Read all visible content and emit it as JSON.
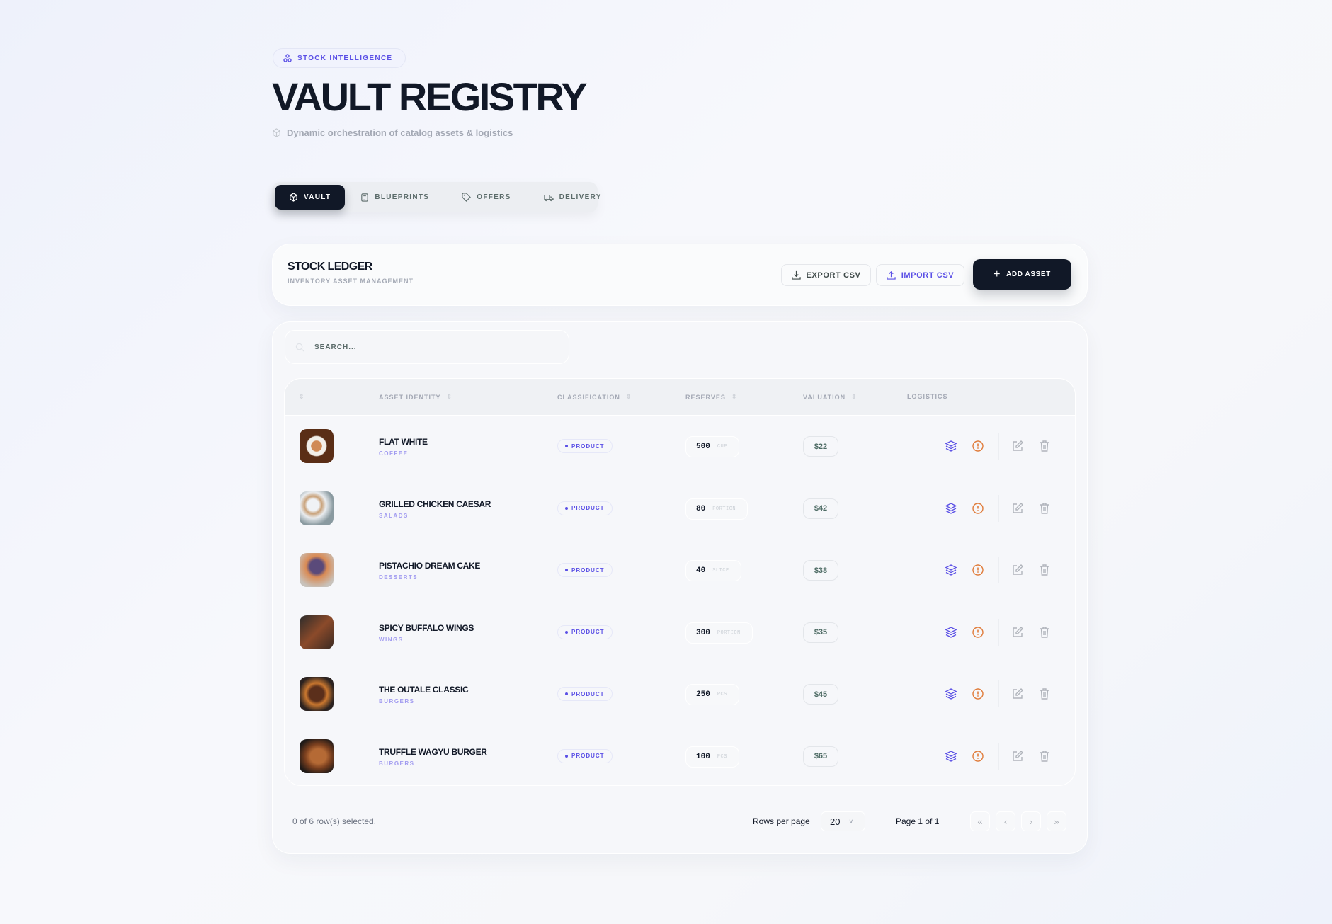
{
  "badge": {
    "label": "STOCK INTELLIGENCE",
    "icon": "network-icon"
  },
  "title": "VAULT REGISTRY",
  "subtitle": "Dynamic orchestration of catalog assets & logistics",
  "tabs": [
    {
      "label": "VAULT",
      "icon": "box-icon",
      "active": true
    },
    {
      "label": "BLUEPRINTS",
      "icon": "clipboard-icon"
    },
    {
      "label": "OFFERS",
      "icon": "tag-icon"
    },
    {
      "label": "DELIVERY",
      "icon": "truck-icon"
    }
  ],
  "ledger": {
    "title": "STOCK LEDGER",
    "subtitle": "INVENTORY ASSET MANAGEMENT",
    "export_label": "EXPORT CSV",
    "import_label": "IMPORT CSV",
    "add_label": "ADD ASSET"
  },
  "search": {
    "placeholder": "SEARCH..."
  },
  "columns": [
    "ASSET IDENTITY",
    "CLASSIFICATION",
    "RESERVES",
    "VALUATION",
    "LOGISTICS"
  ],
  "rows": [
    {
      "name": "FLAT WHITE",
      "category": "COFFEE",
      "type": "PRODUCT",
      "qty": "500",
      "unit": "CUP",
      "price": "$22"
    },
    {
      "name": "GRILLED CHICKEN CAESAR",
      "category": "SALADS",
      "type": "PRODUCT",
      "qty": "80",
      "unit": "PORTION",
      "price": "$42"
    },
    {
      "name": "PISTACHIO DREAM CAKE",
      "category": "DESSERTS",
      "type": "PRODUCT",
      "qty": "40",
      "unit": "SLICE",
      "price": "$38"
    },
    {
      "name": "SPICY BUFFALO WINGS",
      "category": "WINGS",
      "type": "PRODUCT",
      "qty": "300",
      "unit": "PORTION",
      "price": "$35"
    },
    {
      "name": "THE OUTALE CLASSIC",
      "category": "BURGERS",
      "type": "PRODUCT",
      "qty": "250",
      "unit": "PCS",
      "price": "$45"
    },
    {
      "name": "TRUFFLE WAGYU BURGER",
      "category": "BURGERS",
      "type": "PRODUCT",
      "qty": "100",
      "unit": "PCS",
      "price": "$65"
    }
  ],
  "footer": {
    "selected": "0 of 6 row(s) selected.",
    "rows_per_page_label": "Rows per page",
    "rows_per_page": "20",
    "page": "Page 1 of 1"
  },
  "colors": {
    "accent": "#5b50e6",
    "dark": "#111827",
    "warning": "#e07b39"
  }
}
